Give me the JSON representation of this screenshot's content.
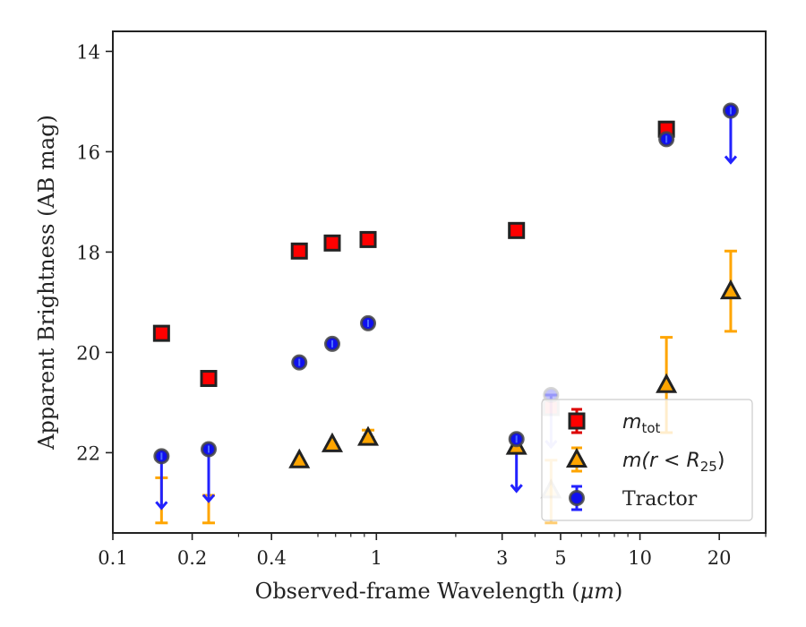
{
  "chart_data": {
    "type": "scatter",
    "xlabel_prefix": "Observed-frame Wavelength (",
    "xlabel_unit": "μm",
    "xlabel_suffix": ")",
    "ylabel": "Apparent Brightness (AB mag)",
    "x_scale": "log",
    "xlim": [
      0.1,
      30
    ],
    "ylim": [
      23.6,
      13.6
    ],
    "y_inverted": true,
    "grid": false,
    "legend_position": "lower-right",
    "x_ticks": [
      {
        "value": 0.1,
        "label": "0.1"
      },
      {
        "value": 0.2,
        "label": "0.2"
      },
      {
        "value": 0.4,
        "label": "0.4"
      },
      {
        "value": 1,
        "label": "1"
      },
      {
        "value": 3,
        "label": "3"
      },
      {
        "value": 5,
        "label": "5"
      },
      {
        "value": 10,
        "label": "10"
      },
      {
        "value": 20,
        "label": "20"
      }
    ],
    "y_ticks": [
      {
        "value": 14,
        "label": "14"
      },
      {
        "value": 16,
        "label": "16"
      },
      {
        "value": 18,
        "label": "18"
      },
      {
        "value": 20,
        "label": "20"
      },
      {
        "value": 22,
        "label": "22"
      }
    ],
    "series": [
      {
        "name_math": "m",
        "name_sub": "tot",
        "name_tail": "",
        "marker": "square",
        "color": "#ff0000",
        "edge_color": "#222222",
        "errorbar_color": "#dd0000",
        "points": [
          {
            "x": 0.153,
            "y": 19.62
          },
          {
            "x": 0.231,
            "y": 20.52
          },
          {
            "x": 0.51,
            "y": 17.98
          },
          {
            "x": 0.68,
            "y": 17.82
          },
          {
            "x": 0.93,
            "y": 17.75
          },
          {
            "x": 3.4,
            "y": 17.57
          },
          {
            "x": 4.6,
            "y": 21.1,
            "faded": true
          },
          {
            "x": 12.6,
            "y": 15.55
          }
        ]
      },
      {
        "name_math": "m(r < R",
        "name_sub": "25",
        "name_tail": ")",
        "marker": "triangle",
        "color": "#ffa500",
        "edge_color": "#222222",
        "errorbar_color": "#ffa500",
        "points": [
          {
            "x": 0.153,
            "y": 23.4,
            "err_lo": 0.9,
            "err_hi": 0.0,
            "marker_hidden": true
          },
          {
            "x": 0.231,
            "y": 23.4,
            "err_lo": 0.55,
            "err_hi": 0.0,
            "marker_hidden": true
          },
          {
            "x": 0.51,
            "y": 22.15
          },
          {
            "x": 0.68,
            "y": 21.83
          },
          {
            "x": 0.93,
            "y": 21.7,
            "err_lo": 0.15,
            "err_hi": 0.0
          },
          {
            "x": 3.4,
            "y": 21.88
          },
          {
            "x": 4.6,
            "y": 22.75,
            "err_lo": 0.6,
            "err_hi": 0.65,
            "faded": true
          },
          {
            "x": 12.6,
            "y": 20.65,
            "err_lo": 0.95,
            "err_hi": 0.95
          },
          {
            "x": 22.1,
            "y": 18.78,
            "err_lo": 0.8,
            "err_hi": 0.8
          }
        ]
      },
      {
        "name_math": "",
        "name_sub": "",
        "name_tail": "",
        "name": "Tractor",
        "marker": "circle",
        "color": "#1010ee",
        "edge_color": "#444444",
        "errorbar_color": "#2222ff",
        "points": [
          {
            "x": 0.153,
            "y": 22.07,
            "upper_limit": true
          },
          {
            "x": 0.231,
            "y": 21.93,
            "upper_limit": true
          },
          {
            "x": 0.51,
            "y": 20.2
          },
          {
            "x": 0.68,
            "y": 19.83
          },
          {
            "x": 0.93,
            "y": 19.42
          },
          {
            "x": 3.4,
            "y": 21.73,
            "upper_limit": true
          },
          {
            "x": 4.6,
            "y": 20.85,
            "upper_limit": true,
            "faded": true
          },
          {
            "x": 12.6,
            "y": 15.75
          },
          {
            "x": 22.1,
            "y": 15.18,
            "upper_limit": true
          }
        ]
      }
    ]
  }
}
